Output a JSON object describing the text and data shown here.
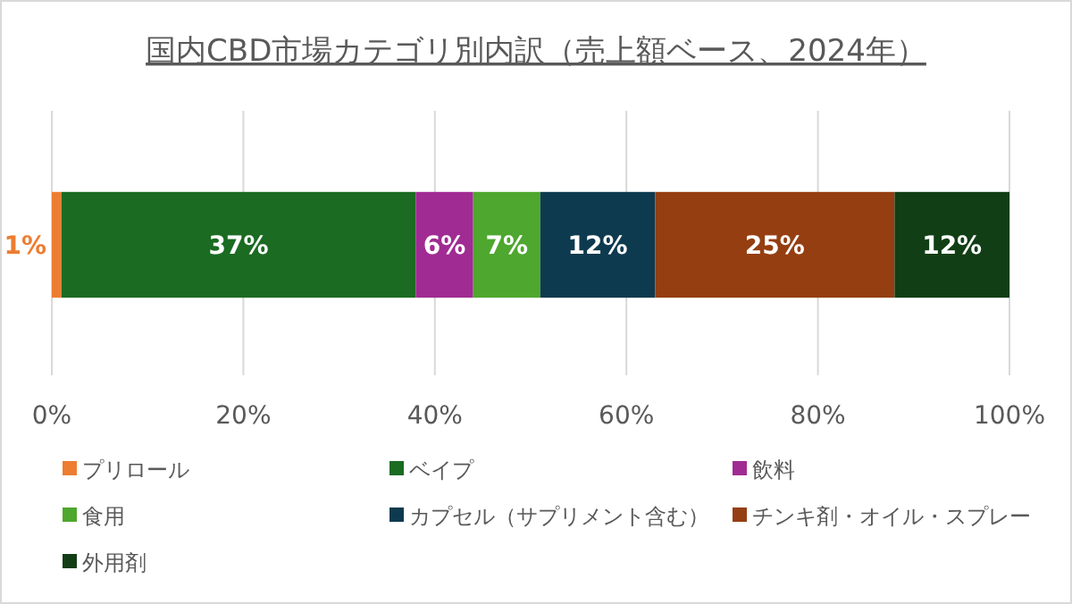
{
  "chart_data": {
    "type": "bar",
    "orientation": "horizontal",
    "stacked": true,
    "title": "国内CBD市場カテゴリ別内訳（売上額ベース、2024年）",
    "categories": [
      null
    ],
    "series": [
      {
        "name": "プリロール",
        "color": "#ed7d31",
        "values": [
          1
        ],
        "value_labels": [
          "1%"
        ]
      },
      {
        "name": "ベイプ",
        "color": "#1b6b22",
        "values": [
          37
        ],
        "value_labels": [
          "37%"
        ]
      },
      {
        "name": "飲料",
        "color": "#a02b93",
        "values": [
          6
        ],
        "value_labels": [
          "6%"
        ]
      },
      {
        "name": "食用",
        "color": "#4ea72e",
        "values": [
          7
        ],
        "value_labels": [
          "7%"
        ]
      },
      {
        "name": "カプセル（サプリメント含む）",
        "color": "#0e3a4f",
        "values": [
          12
        ],
        "value_labels": [
          "12%"
        ]
      },
      {
        "name": "チンキ剤・オイル・スプレー",
        "color": "#953e12",
        "values": [
          25
        ],
        "value_labels": [
          "25%"
        ]
      },
      {
        "name": "外用剤",
        "color": "#123e15",
        "values": [
          12
        ],
        "value_labels": [
          "12%"
        ]
      }
    ],
    "xlim": [
      0,
      100
    ],
    "xticks": [
      {
        "value": 0,
        "label": "0%"
      },
      {
        "value": 20,
        "label": "20%"
      },
      {
        "value": 40,
        "label": "40%"
      },
      {
        "value": 60,
        "label": "60%"
      },
      {
        "value": 80,
        "label": "80%"
      },
      {
        "value": 100,
        "label": "100%"
      }
    ],
    "grid": "x",
    "legend": "bottom"
  }
}
